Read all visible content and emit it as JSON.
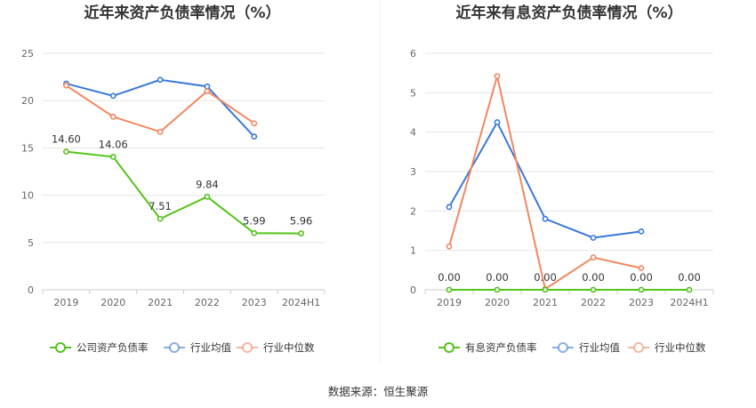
{
  "colors": {
    "company": "#52c41a",
    "industry_avg": "#3a78d8",
    "industry_median": "#f2875f"
  },
  "source_text": "数据来源：恒生聚源",
  "chart_data": [
    {
      "type": "line",
      "title": "近年来资产负债率情况（%）",
      "categories": [
        "2019",
        "2020",
        "2021",
        "2022",
        "2023",
        "2024H1"
      ],
      "ylim": [
        0,
        25
      ],
      "yticks": [
        0,
        5,
        10,
        15,
        20,
        25
      ],
      "grid": true,
      "legend_position": "bottom",
      "series": [
        {
          "name": "公司资产负债率",
          "color_key": "company",
          "values": [
            14.6,
            14.06,
            7.51,
            9.84,
            5.99,
            5.96
          ],
          "labels": [
            "14.60",
            "14.06",
            "7.51",
            "9.84",
            "5.99",
            "5.96"
          ]
        },
        {
          "name": "行业均值",
          "color_key": "industry_avg",
          "values": [
            21.8,
            20.5,
            22.2,
            21.5,
            16.2,
            null
          ]
        },
        {
          "name": "行业中位数",
          "color_key": "industry_median",
          "values": [
            21.6,
            18.3,
            16.7,
            21.0,
            17.6,
            null
          ]
        }
      ]
    },
    {
      "type": "line",
      "title": "近年来有息资产负债率情况（%）",
      "categories": [
        "2019",
        "2020",
        "2021",
        "2022",
        "2023",
        "2024H1"
      ],
      "ylim": [
        0,
        6
      ],
      "yticks": [
        0,
        1,
        2,
        3,
        4,
        5,
        6
      ],
      "grid": true,
      "legend_position": "bottom",
      "series": [
        {
          "name": "有息资产负债率",
          "color_key": "company",
          "values": [
            0,
            0,
            0,
            0,
            0,
            0
          ],
          "labels": [
            "0.00",
            "0.00",
            "0.00",
            "0.00",
            "0.00",
            "0.00"
          ]
        },
        {
          "name": "行业均值",
          "color_key": "industry_avg",
          "values": [
            2.1,
            4.25,
            1.8,
            1.32,
            1.48,
            null
          ]
        },
        {
          "name": "行业中位数",
          "color_key": "industry_median",
          "values": [
            1.1,
            5.42,
            0.02,
            0.82,
            0.55,
            null
          ]
        }
      ]
    }
  ]
}
